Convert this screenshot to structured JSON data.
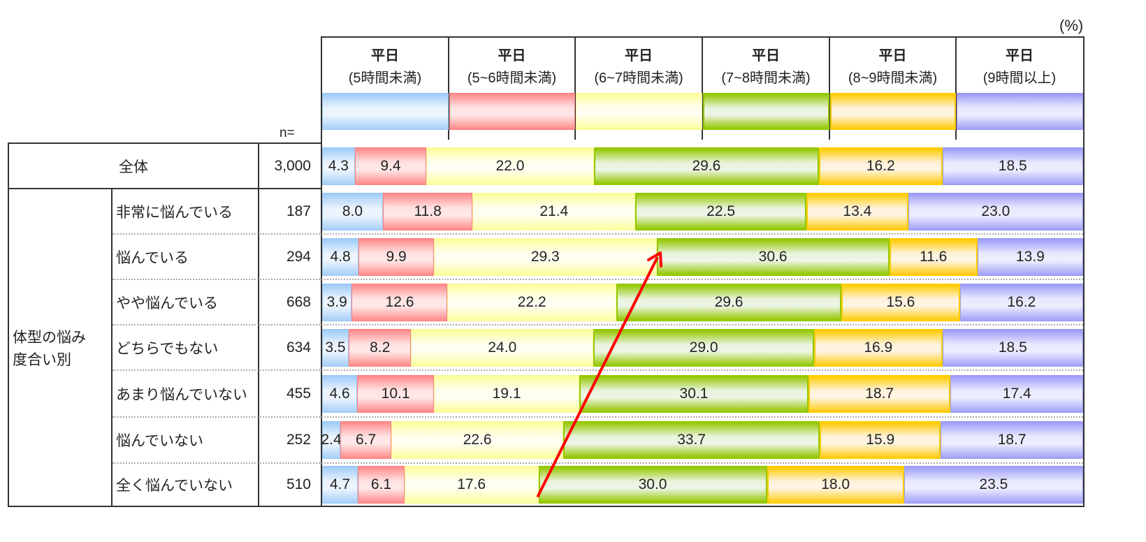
{
  "unit_label": "(%)",
  "n_label": "n=",
  "group_label_line1": "体型の悩み",
  "group_label_line2": "度合い別",
  "legend": [
    {
      "line1": "平日",
      "line2": "(5時間未満)",
      "color": "#9ccaf8"
    },
    {
      "line1": "平日",
      "line2": "(5~6時間未満)",
      "color": "#ff8888"
    },
    {
      "line1": "平日",
      "line2": "(6~7時間未満)",
      "color": "#fdfd99"
    },
    {
      "line1": "平日",
      "line2": "(7~8時間未満)",
      "color": "#94c800"
    },
    {
      "line1": "平日",
      "line2": "(8~9時間未満)",
      "color": "#ffcc00"
    },
    {
      "line1": "平日",
      "line2": "(9時間以上)",
      "color": "#9a9af8"
    }
  ],
  "rows": [
    {
      "label": "全体",
      "n": "3,000",
      "values": [
        "4.3",
        "9.4",
        "22.0",
        "29.6",
        "16.2",
        "18.5"
      ]
    },
    {
      "label": "非常に悩んでいる",
      "n": "187",
      "values": [
        "8.0",
        "11.8",
        "21.4",
        "22.5",
        "13.4",
        "23.0"
      ]
    },
    {
      "label": "悩んでいる",
      "n": "294",
      "values": [
        "4.8",
        "9.9",
        "29.3",
        "30.6",
        "11.6",
        "13.9"
      ]
    },
    {
      "label": "やや悩んでいる",
      "n": "668",
      "values": [
        "3.9",
        "12.6",
        "22.2",
        "29.6",
        "15.6",
        "16.2"
      ]
    },
    {
      "label": "どちらでもない",
      "n": "634",
      "values": [
        "3.5",
        "8.2",
        "24.0",
        "29.0",
        "16.9",
        "18.5"
      ]
    },
    {
      "label": "あまり悩んでいない",
      "n": "455",
      "values": [
        "4.6",
        "10.1",
        "19.1",
        "30.1",
        "18.7",
        "17.4"
      ]
    },
    {
      "label": "悩んでいない",
      "n": "252",
      "values": [
        "2.4",
        "6.7",
        "22.6",
        "33.7",
        "15.9",
        "18.7"
      ]
    },
    {
      "label": "全く悩んでいない",
      "n": "510",
      "values": [
        "4.7",
        "6.1",
        "17.6",
        "30.0",
        "18.0",
        "23.5"
      ]
    }
  ],
  "annotation": {
    "type": "arrow",
    "color": "#ff0000",
    "from_row": "全く悩んでいない",
    "to_row": "悩んでいる",
    "description": "red arrow pointing up-right along the 6~7h / 7~8h boundary"
  },
  "chart_data": {
    "type": "bar",
    "orientation": "horizontal",
    "stacked": true,
    "normalized_100": true,
    "title": "",
    "xlabel": "",
    "ylabel": "",
    "unit": "%",
    "categories": [
      "全体",
      "非常に悩んでいる",
      "悩んでいる",
      "やや悩んでいる",
      "どちらでもない",
      "あまり悩んでいない",
      "悩んでいない",
      "全く悩んでいない"
    ],
    "category_group": "体型の悩み度合い別",
    "n": [
      3000,
      187,
      294,
      668,
      634,
      455,
      252,
      510
    ],
    "series": [
      {
        "name": "平日(5時間未満)",
        "values": [
          4.3,
          8.0,
          4.8,
          3.9,
          3.5,
          4.6,
          2.4,
          4.7
        ]
      },
      {
        "name": "平日(5~6時間未満)",
        "values": [
          9.4,
          11.8,
          9.9,
          12.6,
          8.2,
          10.1,
          6.7,
          6.1
        ]
      },
      {
        "name": "平日(6~7時間未満)",
        "values": [
          22.0,
          21.4,
          29.3,
          22.2,
          24.0,
          19.1,
          22.6,
          17.6
        ]
      },
      {
        "name": "平日(7~8時間未満)",
        "values": [
          29.6,
          22.5,
          30.6,
          29.6,
          29.0,
          30.1,
          33.7,
          30.0
        ]
      },
      {
        "name": "平日(8~9時間未満)",
        "values": [
          16.2,
          13.4,
          11.6,
          15.6,
          16.9,
          18.7,
          15.9,
          18.0
        ]
      },
      {
        "name": "平日(9時間以上)",
        "values": [
          18.5,
          23.0,
          13.9,
          16.2,
          18.5,
          17.4,
          18.7,
          23.5
        ]
      }
    ],
    "legend_position": "top",
    "xlim": [
      0,
      100
    ],
    "grid": false
  }
}
